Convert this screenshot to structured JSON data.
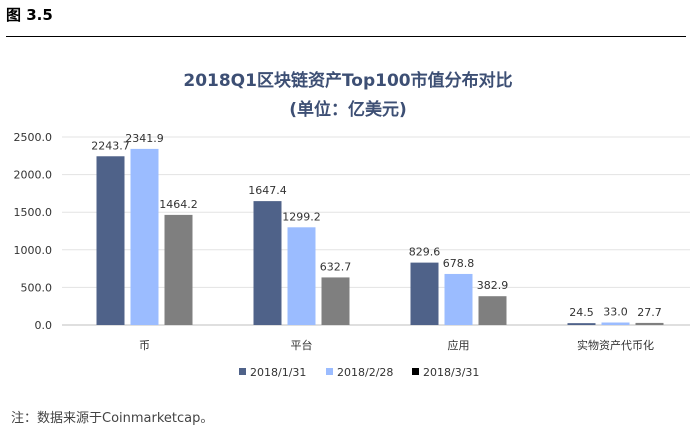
{
  "figure_label": "图 3.5",
  "footnote": "注：数据来源于Coinmarketcap。",
  "chart_data": {
    "type": "bar",
    "title": "2018Q1区块链资产Top100市值分布对比",
    "subtitle": "(单位：亿美元)",
    "categories": [
      "币",
      "平台",
      "应用",
      "实物资产代币化"
    ],
    "series": [
      {
        "name": "2018/1/31",
        "color": "#4f6289",
        "values": [
          2243.7,
          1647.4,
          829.6,
          24.5
        ]
      },
      {
        "name": "2018/2/28",
        "color": "#9bbcff",
        "values": [
          2341.9,
          1299.2,
          678.8,
          33.0
        ]
      },
      {
        "name": "2018/3/31",
        "color": "#7f7f7f",
        "values": [
          1464.2,
          632.7,
          382.9,
          27.7
        ]
      }
    ],
    "value_labels": [
      [
        "2243.7",
        "1647.4",
        "829.6",
        "24.5"
      ],
      [
        "2341.9",
        "1299.2",
        "678.8",
        "33.0"
      ],
      [
        "1464.2",
        "632.7",
        "382.9",
        "27.7"
      ]
    ],
    "yticks": [
      "0.0",
      "500.0",
      "1000.0",
      "1500.0",
      "2000.0",
      "2500.0"
    ],
    "ylim": [
      0,
      2500
    ],
    "grid": true,
    "legend_position": "bottom",
    "legend_marker_color": "#000000"
  }
}
